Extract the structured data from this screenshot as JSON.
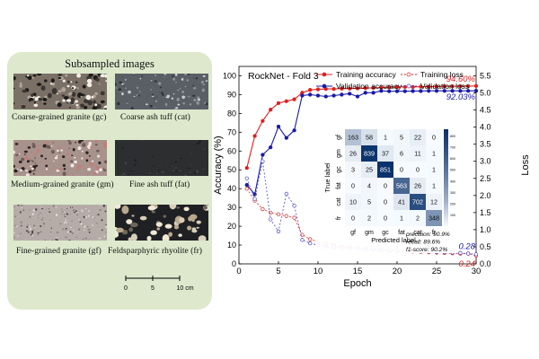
{
  "figure": {
    "panel_title": "Subsampled images",
    "rocks": [
      {
        "caption": "Coarse-grained granite (gc)",
        "texture": "coarse-granite"
      },
      {
        "caption": "Coarse ash tuff (cat)",
        "texture": "coarse-ash-tuff"
      },
      {
        "caption": "Medium-grained granite (gm)",
        "texture": "medium-granite"
      },
      {
        "caption": "Fine ash tuff (fat)",
        "texture": "fine-ash-tuff"
      },
      {
        "caption": "Fine-grained granite (gf)",
        "texture": "fine-granite"
      },
      {
        "caption": "Feldsparphyric rhyolite (fr)",
        "texture": "rhyolite"
      }
    ],
    "scale_bar": {
      "ticks": [
        "0",
        "5",
        "10 cm"
      ]
    }
  },
  "chart_data": {
    "type": "line",
    "title": "RockNet - Fold 3",
    "xlabel": "Epoch",
    "ylabel": "Accuracy (%)",
    "y2label": "Loss",
    "xlim": [
      0,
      30
    ],
    "ylim": [
      0,
      105
    ],
    "y2lim": [
      0,
      5.775
    ],
    "xticks": [
      0,
      5,
      10,
      15,
      20,
      25,
      30
    ],
    "yticks": [
      0,
      10,
      20,
      30,
      40,
      50,
      60,
      70,
      80,
      90,
      100
    ],
    "y2ticks": [
      0.0,
      0.5,
      1.0,
      1.5,
      2.0,
      2.5,
      3.0,
      3.5,
      4.0,
      4.5,
      5.0,
      5.5
    ],
    "x": [
      1,
      2,
      3,
      4,
      5,
      6,
      7,
      8,
      9,
      10,
      11,
      12,
      13,
      14,
      15,
      16,
      17,
      18,
      19,
      20,
      21,
      22,
      23,
      24,
      25,
      26,
      27,
      28,
      29,
      30
    ],
    "series": [
      {
        "name": "Training accuracy",
        "axis": "left",
        "color": "#e02020",
        "dash": false,
        "marker": "filled",
        "values": [
          51,
          68,
          76,
          82,
          85.5,
          86.5,
          87.5,
          91,
          92.5,
          92.8,
          93,
          93,
          93.2,
          93.2,
          93.3,
          93.5,
          93.6,
          93.8,
          93.9,
          94,
          94.1,
          94.1,
          94.2,
          94.2,
          94.3,
          94.4,
          94.4,
          94.5,
          94.5,
          94.6
        ]
      },
      {
        "name": "Training loss",
        "axis": "right",
        "color": "#e02020",
        "dash": true,
        "marker": "open",
        "values": [
          2.2,
          1.85,
          1.6,
          1.5,
          1.45,
          1.4,
          1.35,
          0.85,
          0.72,
          0.65,
          0.6,
          0.55,
          0.5,
          0.48,
          0.46,
          0.44,
          0.42,
          0.41,
          0.39,
          0.38,
          0.37,
          0.36,
          0.35,
          0.34,
          0.33,
          0.32,
          0.31,
          0.3,
          0.3,
          0.24
        ]
      },
      {
        "name": "Validation accuracy",
        "axis": "left",
        "color": "#1a1aa6",
        "dash": false,
        "marker": "filled",
        "values": [
          42,
          37,
          58,
          62,
          73,
          67,
          71,
          89.5,
          90,
          89.5,
          89,
          89.5,
          90,
          90.5,
          89,
          91,
          91,
          92,
          91.8,
          91.8,
          91.8,
          91.9,
          91.9,
          92,
          92,
          92,
          92,
          92,
          92,
          92.03
        ]
      },
      {
        "name": "Validation loss",
        "axis": "right",
        "color": "#4a4ad0",
        "dash": true,
        "marker": "open",
        "values": [
          2.5,
          1.9,
          3.0,
          1.3,
          0.95,
          2.05,
          1.7,
          0.7,
          0.6,
          0.55,
          0.5,
          0.48,
          0.47,
          0.46,
          0.45,
          0.44,
          0.43,
          0.42,
          0.41,
          0.4,
          0.39,
          0.38,
          0.37,
          0.36,
          0.35,
          0.34,
          0.33,
          0.32,
          0.3,
          0.28
        ]
      }
    ],
    "end_labels": [
      {
        "text": "94.60%",
        "color": "#e02020"
      },
      {
        "text": "92.03%",
        "color": "#1a1aa6"
      },
      {
        "text": "0.28",
        "color": "#1a1aa6"
      },
      {
        "text": "0.24",
        "color": "#e02020"
      }
    ],
    "confusion_matrix": {
      "xlabel": "Predicted label",
      "ylabel": "True label",
      "labels": [
        "gf",
        "gm",
        "gc",
        "fat",
        "cat",
        "fr"
      ],
      "values": [
        [
          163,
          58,
          1,
          5,
          22,
          0
        ],
        [
          26,
          839,
          37,
          6,
          11,
          1
        ],
        [
          3,
          25,
          851,
          0,
          0,
          1
        ],
        [
          0,
          4,
          0,
          563,
          26,
          1
        ],
        [
          10,
          5,
          0,
          41,
          702,
          12
        ],
        [
          0,
          2,
          0,
          1,
          2,
          348
        ]
      ],
      "colorbar_ticks": [
        100,
        200,
        300,
        400,
        500,
        600,
        700,
        800
      ],
      "colorbar_max": 860
    },
    "metrics": [
      "precision: 90.9%",
      "recall: 89.6%",
      "f1-score: 90.2%"
    ]
  }
}
